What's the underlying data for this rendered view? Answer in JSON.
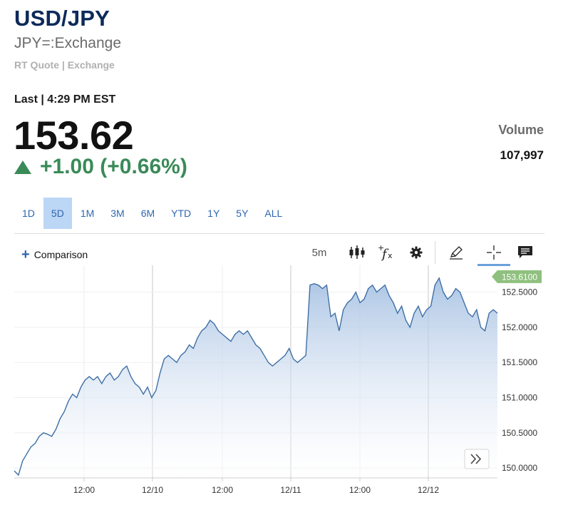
{
  "header": {
    "symbol": "USD/JPY",
    "exchange_name": "JPY=:Exchange",
    "quote_type": "RT Quote | Exchange",
    "last_line": "Last | 4:29 PM EST",
    "price": "153.62",
    "change": "+1.00 (+0.66%)",
    "change_direction": "up",
    "volume_label": "Volume",
    "volume_value": "107,997"
  },
  "range_tabs": [
    {
      "label": "1D",
      "active": false
    },
    {
      "label": "5D",
      "active": true
    },
    {
      "label": "1M",
      "active": false
    },
    {
      "label": "3M",
      "active": false
    },
    {
      "label": "6M",
      "active": false
    },
    {
      "label": "YTD",
      "active": false
    },
    {
      "label": "1Y",
      "active": false
    },
    {
      "label": "5Y",
      "active": false
    },
    {
      "label": "ALL",
      "active": false
    }
  ],
  "toolbar": {
    "comparison_label": "Comparison",
    "interval_label": "5m",
    "icons": [
      "candlestick-icon",
      "function-icon",
      "gear-icon",
      "pencil-icon",
      "crosshair-icon",
      "comment-icon"
    ],
    "active_tool": "crosshair-icon"
  },
  "colors": {
    "accent": "#2f67b1",
    "positive": "#3a8a58",
    "line": "#3f6fa6",
    "area_top": "#9dbbe0",
    "last_price_tag": "#8fc07e"
  },
  "chart_data": {
    "type": "area",
    "series": [
      {
        "values": [
          149.96,
          149.9,
          150.1,
          150.2,
          150.3,
          150.35,
          150.45,
          150.5,
          150.48,
          150.45,
          150.55,
          150.7,
          150.8,
          150.95,
          151.05,
          151.0,
          151.15,
          151.25,
          151.3,
          151.25,
          151.3,
          151.2,
          151.3,
          151.35,
          151.25,
          151.3,
          151.4,
          151.45,
          151.3,
          151.2,
          151.15,
          151.05,
          151.15,
          151.0,
          151.1,
          151.35,
          151.55,
          151.6,
          151.55,
          151.5,
          151.6,
          151.65,
          151.75,
          151.7,
          151.85,
          151.95,
          152.0,
          152.1,
          152.05,
          151.95,
          151.9,
          151.85,
          151.8,
          151.9,
          151.95,
          151.9,
          151.95,
          151.85,
          151.75,
          151.7,
          151.6,
          151.5,
          151.45,
          151.5,
          151.55,
          151.6,
          151.7,
          151.55,
          151.5,
          151.55,
          151.6,
          152.6,
          152.62,
          152.6,
          152.55,
          152.6,
          152.15,
          152.2,
          151.95,
          152.25,
          152.35,
          152.4,
          152.5,
          152.35,
          152.4,
          152.55,
          152.6,
          152.5,
          152.55,
          152.6,
          152.45,
          152.35,
          152.2,
          152.3,
          152.1,
          152.0,
          152.2,
          152.3,
          152.15,
          152.25,
          152.3,
          152.6,
          152.7,
          152.5,
          152.4,
          152.45,
          152.55,
          152.5,
          152.35,
          152.2,
          152.15,
          152.25,
          152.0,
          151.95,
          152.2,
          152.25,
          152.2
        ]
      }
    ],
    "x_range": [
      "12/09",
      "12/12"
    ],
    "x_tick_labels": [
      "12:00",
      "12/10",
      "12:00",
      "12/11",
      "12:00",
      "12/12"
    ],
    "y_tick_labels": [
      "152.5000",
      "152.0000",
      "151.5000",
      "151.0000",
      "150.5000",
      "150.0000"
    ],
    "y_ticks": [
      152.5,
      152.0,
      151.5,
      151.0,
      150.5,
      150.0
    ],
    "ylim": [
      149.88,
      152.84
    ],
    "last_price_label": "153.6100",
    "last_price_marker_value": 152.72,
    "grid": true,
    "y_axis_position": "right"
  }
}
